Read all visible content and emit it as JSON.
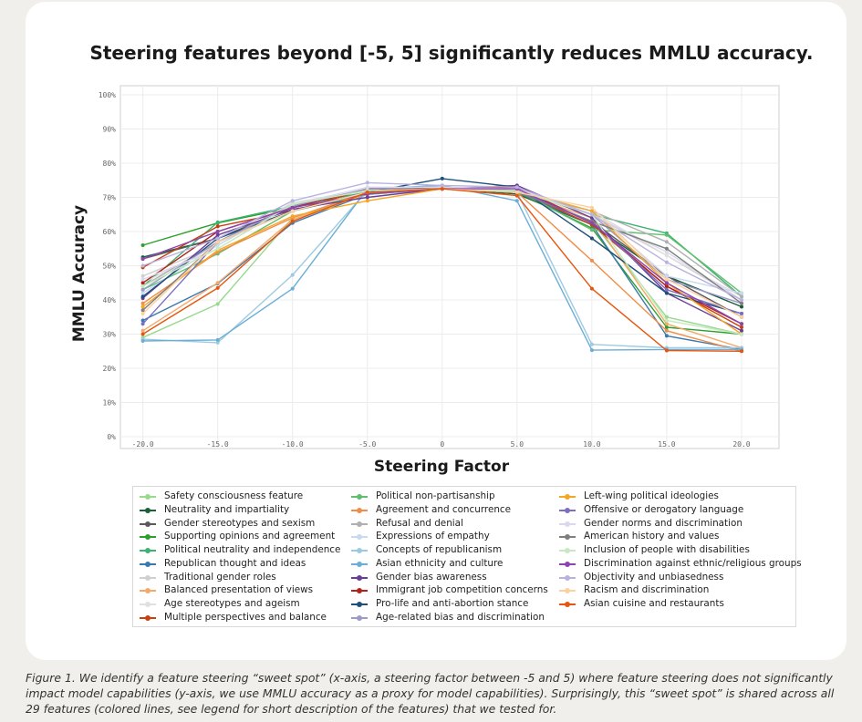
{
  "caption": "Figure 1. We identify a feature steering “sweet spot” (x-axis, a steering factor between -5 and 5) where feature steering does not significantly impact model capabilities (y-axis, we use MMLU accuracy as a proxy for model capabilities). Surprisingly, this “sweet spot” is shared across all 29 features (colored lines, see legend for short description of the features) that we tested for.",
  "chart_data": {
    "type": "line",
    "title": "Steering features beyond [-5, 5] significantly reduces MMLU accuracy.",
    "xlabel": "Steering Factor",
    "ylabel": "MMLU Accuracy",
    "x": [
      -20,
      -15,
      -10,
      -5,
      0,
      5,
      10,
      15,
      20
    ],
    "xlim": [
      -21.5,
      22.5
    ],
    "ylim": [
      0,
      100
    ],
    "x_ticks": [
      "-20.0",
      "-15.0",
      "-10.0",
      "-5.0",
      "0",
      "5.0",
      "10.0",
      "15.0",
      "20.0"
    ],
    "y_ticks": [
      "0%",
      "10%",
      "20%",
      "30%",
      "40%",
      "50%",
      "60%",
      "70%",
      "80%",
      "90%",
      "100%"
    ],
    "grid": true,
    "legend_position": "bottom",
    "series": [
      {
        "name": "Safety consciousness feature",
        "color": "#98d98e",
        "values": [
          29,
          38.8,
          64,
          70.8,
          72.5,
          71.5,
          63,
          35,
          30
        ]
      },
      {
        "name": "Neutrality and impartiality",
        "color": "#1b5e3b",
        "values": [
          52.5,
          58,
          66,
          71,
          72.5,
          71,
          62,
          47,
          38
        ]
      },
      {
        "name": "Gender stereotypes and sexism",
        "color": "#5a5a5a",
        "values": [
          52,
          58,
          67,
          71,
          72.5,
          71.5,
          63,
          47,
          35
        ]
      },
      {
        "name": "Supporting opinions and agreement",
        "color": "#2ca02c",
        "values": [
          56,
          62.5,
          67,
          71,
          72.5,
          71.5,
          61,
          32,
          30
        ]
      },
      {
        "name": "Political neutrality and independence",
        "color": "#3cb371",
        "values": [
          44,
          62.7,
          67.5,
          71.5,
          72.5,
          71.5,
          65,
          59.5,
          41
        ]
      },
      {
        "name": "Republican thought and ideas",
        "color": "#3a79ad",
        "values": [
          34,
          44.8,
          62.5,
          71,
          72.5,
          71.5,
          62,
          29.5,
          25.5
        ]
      },
      {
        "name": "Traditional gender roles",
        "color": "#d0d0d0",
        "values": [
          47,
          56,
          68,
          72,
          72.5,
          71.5,
          65,
          53,
          40
        ]
      },
      {
        "name": "Balanced presentation of views",
        "color": "#f4a86a",
        "values": [
          31,
          45,
          63.5,
          71,
          72.5,
          71.5,
          64,
          33,
          26
        ]
      },
      {
        "name": "Age stereotypes and ageism",
        "color": "#e0e0e0",
        "values": [
          45,
          56,
          68.5,
          72,
          72.5,
          71.5,
          66,
          53,
          41
        ]
      },
      {
        "name": "Multiple perspectives and balance",
        "color": "#c9400f",
        "values": [
          49.5,
          61.5,
          66,
          72.5,
          73,
          72,
          62,
          44,
          32
        ]
      },
      {
        "name": "Political non-partisanship",
        "color": "#5fbf6e",
        "values": [
          43,
          53.5,
          66,
          71,
          72.5,
          72,
          60.5,
          59,
          42
        ]
      },
      {
        "name": "Agreement and concurrence",
        "color": "#f28c46",
        "values": [
          39,
          54,
          64,
          71.5,
          72.5,
          71.5,
          51.5,
          31,
          25
        ]
      },
      {
        "name": "Refusal and denial",
        "color": "#b0b0b0",
        "values": [
          44,
          57,
          68,
          72,
          72.5,
          71.5,
          66,
          57,
          41
        ]
      },
      {
        "name": "Expressions of empathy",
        "color": "#c6dbef",
        "values": [
          42,
          56,
          68,
          72,
          73,
          72,
          66,
          47,
          42
        ]
      },
      {
        "name": "Concepts of republicanism",
        "color": "#9ecae1",
        "values": [
          28.5,
          27.5,
          47.3,
          72,
          73,
          71.5,
          27,
          26,
          26
        ]
      },
      {
        "name": "Asian ethnicity and culture",
        "color": "#6baed6",
        "values": [
          28,
          28.3,
          43.3,
          72.5,
          73.5,
          69,
          25.3,
          25.5,
          25.5
        ]
      },
      {
        "name": "Gender bias awareness",
        "color": "#6a3d9a",
        "values": [
          40.5,
          59,
          66.5,
          70,
          72.5,
          73.5,
          64,
          42,
          31
        ]
      },
      {
        "name": "Immigrant job competition concerns",
        "color": "#b2221b",
        "values": [
          45,
          60,
          67,
          72.5,
          72.5,
          73,
          62.5,
          44,
          33
        ]
      },
      {
        "name": "Pro-life and anti-abortion stance",
        "color": "#1f4e79",
        "values": [
          41,
          58,
          66,
          71.5,
          75.5,
          73,
          58,
          42,
          36
        ]
      },
      {
        "name": "Age-related bias and discrimination",
        "color": "#9d9ac8",
        "values": [
          43,
          57,
          67.5,
          72.5,
          73,
          72,
          65,
          46,
          39
        ]
      },
      {
        "name": "Left-wing political ideologies",
        "color": "#f5a623",
        "values": [
          38,
          54.5,
          64.5,
          69,
          72.5,
          72,
          66,
          45,
          30
        ]
      },
      {
        "name": "Offensive or derogatory language",
        "color": "#7b6fc4",
        "values": [
          33,
          57,
          66,
          71.5,
          72.5,
          72,
          63,
          43,
          36
        ]
      },
      {
        "name": "Gender norms and discrimination",
        "color": "#dad8ec",
        "values": [
          46,
          55,
          68,
          73,
          73,
          72.5,
          65,
          54,
          40
        ]
      },
      {
        "name": "American history and values",
        "color": "#7f7f7f",
        "values": [
          37,
          57,
          66,
          71.5,
          72.5,
          71.5,
          63,
          55,
          39
        ]
      },
      {
        "name": "Inclusion of people with disabilities",
        "color": "#c7e9c0",
        "values": [
          44,
          55,
          68,
          72,
          72.5,
          72,
          65,
          34,
          30
        ]
      },
      {
        "name": "Discrimination against ethnic/religious groups",
        "color": "#8e44ad",
        "values": [
          52,
          60,
          67,
          71,
          72.5,
          72.5,
          62.5,
          45,
          33
        ]
      },
      {
        "name": "Objectivity and unbiasedness",
        "color": "#b8b2e0",
        "values": [
          50,
          58,
          69,
          74.3,
          73.5,
          73,
          65,
          51,
          40
        ]
      },
      {
        "name": "Racism and discrimination",
        "color": "#fdd0a2",
        "values": [
          36,
          57,
          66,
          71.5,
          72.5,
          71.5,
          67,
          46,
          35
        ]
      },
      {
        "name": "Asian cuisine and restaurants",
        "color": "#e6550d",
        "values": [
          30,
          43.5,
          63,
          71.5,
          72.5,
          70.5,
          43.3,
          25.2,
          25
        ]
      }
    ]
  }
}
